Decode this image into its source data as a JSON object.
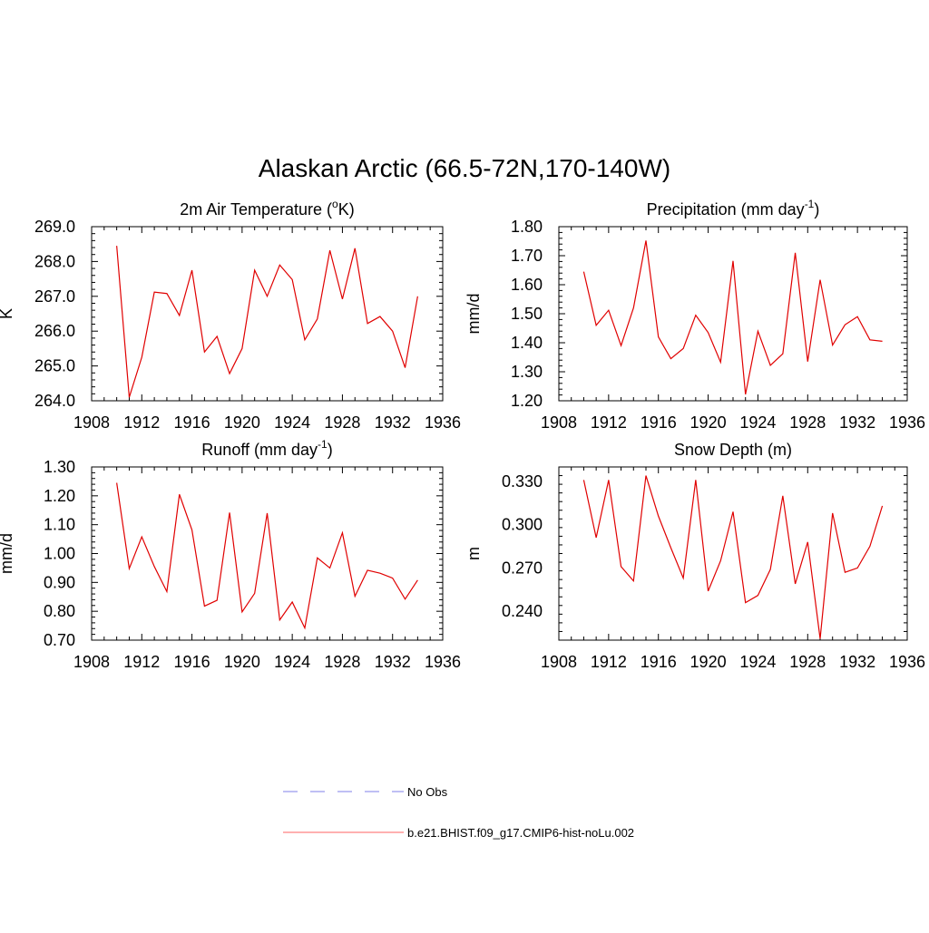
{
  "title": "Alaskan Arctic (66.5-72N,170-140W)",
  "colors": {
    "model_line": "#e00000",
    "obs_line": "#9999ee",
    "axis": "#000000"
  },
  "legend": {
    "placement": "bottom-center",
    "entries": [
      {
        "label": "No Obs",
        "style": "dashed",
        "color": "#9999ee"
      },
      {
        "label": "b.e21.BHIST.f09_g17.CMIP6-hist-noLu.002",
        "style": "solid",
        "color": "#ff8080"
      }
    ]
  },
  "chart_data": [
    {
      "type": "line",
      "title_main": "2m Air Temperature (",
      "title_sup": "o",
      "title_tail": "K)",
      "ylabel": "K",
      "xlim": [
        1908,
        1936
      ],
      "xticks": [
        1908,
        1912,
        1916,
        1920,
        1924,
        1928,
        1932,
        1936
      ],
      "ylim": [
        264.0,
        269.0
      ],
      "yticks": [
        264.0,
        265.0,
        266.0,
        267.0,
        268.0,
        269.0
      ],
      "ydecimals": 1,
      "x": [
        1910,
        1911,
        1912,
        1913,
        1914,
        1915,
        1916,
        1917,
        1918,
        1919,
        1920,
        1921,
        1922,
        1923,
        1924,
        1925,
        1926,
        1927,
        1928,
        1929,
        1930,
        1931,
        1932,
        1933,
        1934
      ],
      "series": [
        {
          "values": [
            268.45,
            264.1,
            265.25,
            267.12,
            267.08,
            266.45,
            267.75,
            265.4,
            265.85,
            264.78,
            265.5,
            267.75,
            267.0,
            267.9,
            267.48,
            265.75,
            266.35,
            268.32,
            266.92,
            268.38,
            266.22,
            266.42,
            266.0,
            264.95,
            267.0
          ]
        }
      ]
    },
    {
      "type": "line",
      "title_main": "Precipitation (mm day",
      "title_sup": "-1",
      "title_tail": ")",
      "ylabel": "mm/d",
      "xlim": [
        1908,
        1936
      ],
      "xticks": [
        1908,
        1912,
        1916,
        1920,
        1924,
        1928,
        1932,
        1936
      ],
      "ylim": [
        1.2,
        1.8
      ],
      "yticks": [
        1.2,
        1.3,
        1.4,
        1.5,
        1.6,
        1.7,
        1.8
      ],
      "ydecimals": 2,
      "x": [
        1910,
        1911,
        1912,
        1913,
        1914,
        1915,
        1916,
        1917,
        1918,
        1919,
        1920,
        1921,
        1922,
        1923,
        1924,
        1925,
        1926,
        1927,
        1928,
        1929,
        1930,
        1931,
        1932,
        1933,
        1934
      ],
      "series": [
        {
          "values": [
            1.645,
            1.46,
            1.512,
            1.39,
            1.52,
            1.752,
            1.42,
            1.345,
            1.38,
            1.495,
            1.435,
            1.333,
            1.682,
            1.222,
            1.44,
            1.322,
            1.362,
            1.71,
            1.335,
            1.617,
            1.392,
            1.462,
            1.49,
            1.41,
            1.405
          ]
        }
      ]
    },
    {
      "type": "line",
      "title_main": "Runoff (mm day",
      "title_sup": "-1",
      "title_tail": ")",
      "ylabel": "mm/d",
      "xlim": [
        1908,
        1936
      ],
      "xticks": [
        1908,
        1912,
        1916,
        1920,
        1924,
        1928,
        1932,
        1936
      ],
      "ylim": [
        0.7,
        1.3
      ],
      "yticks": [
        0.7,
        0.8,
        0.9,
        1.0,
        1.1,
        1.2,
        1.3
      ],
      "ydecimals": 2,
      "x": [
        1910,
        1911,
        1912,
        1913,
        1914,
        1915,
        1916,
        1917,
        1918,
        1919,
        1920,
        1921,
        1922,
        1923,
        1924,
        1925,
        1926,
        1927,
        1928,
        1929,
        1930,
        1931,
        1932,
        1933,
        1934
      ],
      "series": [
        {
          "values": [
            1.245,
            0.948,
            1.058,
            0.955,
            0.868,
            1.205,
            1.082,
            0.818,
            0.838,
            1.142,
            0.798,
            0.862,
            1.14,
            0.77,
            0.832,
            0.742,
            0.985,
            0.95,
            1.072,
            0.852,
            0.942,
            0.932,
            0.915,
            0.842,
            0.908
          ]
        }
      ]
    },
    {
      "type": "line",
      "title_main": "Snow Depth (m)",
      "title_sup": "",
      "title_tail": "",
      "ylabel": "m",
      "xlim": [
        1908,
        1936
      ],
      "xticks": [
        1908,
        1912,
        1916,
        1920,
        1924,
        1928,
        1932,
        1936
      ],
      "ylim": [
        0.22,
        0.34
      ],
      "yticks": [
        0.24,
        0.27,
        0.3,
        0.33
      ],
      "ydecimals": 3,
      "x": [
        1910,
        1911,
        1912,
        1913,
        1914,
        1915,
        1916,
        1917,
        1918,
        1919,
        1920,
        1921,
        1922,
        1923,
        1924,
        1925,
        1926,
        1927,
        1928,
        1929,
        1930,
        1931,
        1932,
        1933,
        1934
      ],
      "series": [
        {
          "values": [
            0.331,
            0.291,
            0.331,
            0.271,
            0.261,
            0.334,
            0.306,
            0.284,
            0.263,
            0.331,
            0.254,
            0.275,
            0.309,
            0.246,
            0.251,
            0.269,
            0.32,
            0.259,
            0.288,
            0.221,
            0.308,
            0.267,
            0.27,
            0.285,
            0.313
          ]
        }
      ]
    }
  ]
}
